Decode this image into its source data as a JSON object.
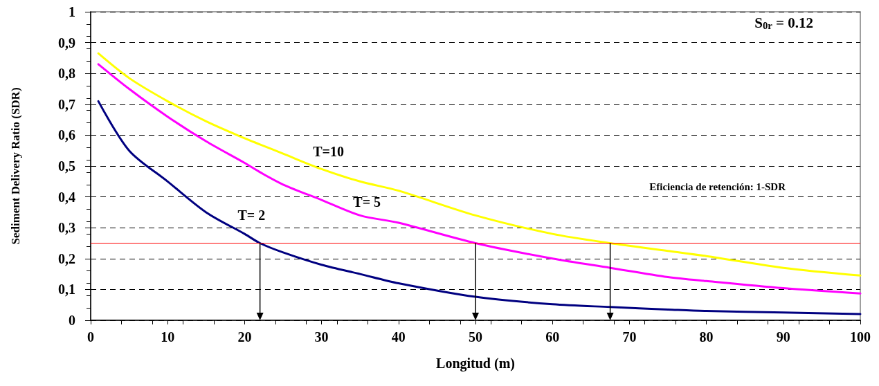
{
  "chart_data": {
    "type": "line",
    "xlabel": "Longitud (m)",
    "ylabel": "Sediment Delivery Ratio (SDR)",
    "annotations": [
      "S$_{0r}$ = 0.12",
      "Eficiencia de retención: 1-SDR"
    ],
    "x": [
      1,
      5,
      10,
      15,
      20,
      22,
      25,
      30,
      35,
      40,
      50,
      60,
      67.5,
      75,
      80,
      90,
      100
    ],
    "series": [
      {
        "name": "T=10",
        "color": "#ffff00",
        "values": [
          0.865,
          0.785,
          0.71,
          0.645,
          0.59,
          0.57,
          0.54,
          0.49,
          0.45,
          0.42,
          0.34,
          0.28,
          0.25,
          0.225,
          0.208,
          0.17,
          0.145
        ]
      },
      {
        "name": "T= 5",
        "color": "#ff00ff",
        "values": [
          0.83,
          0.75,
          0.66,
          0.58,
          0.51,
          0.48,
          0.44,
          0.39,
          0.34,
          0.316,
          0.25,
          0.2,
          0.17,
          0.14,
          0.127,
          0.104,
          0.087
        ]
      },
      {
        "name": "T= 2",
        "color": "#000080",
        "values": [
          0.71,
          0.55,
          0.45,
          0.35,
          0.28,
          0.25,
          0.22,
          0.18,
          0.15,
          0.12,
          0.076,
          0.052,
          0.043,
          0.035,
          0.03,
          0.025,
          0.02
        ]
      }
    ],
    "xlim": [
      0,
      100
    ],
    "xticks": [
      0,
      10,
      20,
      30,
      40,
      50,
      60,
      70,
      80,
      90,
      100
    ],
    "ylim": [
      0,
      1
    ],
    "yticks": [
      0,
      {
        "value": 0.1,
        "label": "0,1"
      },
      {
        "value": 0.2,
        "label": "0,2"
      },
      {
        "value": 0.3,
        "label": "0,3"
      },
      {
        "value": 0.4,
        "label": "0,4"
      },
      {
        "value": 0.5,
        "label": "0,5"
      },
      {
        "value": 0.6,
        "label": "0,6"
      },
      {
        "value": 0.7,
        "label": "0,7"
      },
      {
        "value": 0.8,
        "label": "0,8"
      },
      {
        "value": 0.9,
        "label": "0,9"
      },
      1
    ],
    "ref_lines": [
      {
        "axis": "y",
        "value": 0.25,
        "color": "#ff0000"
      }
    ],
    "grid": "y",
    "legend": false,
    "marker": "none",
    "line_style": "solid"
  }
}
